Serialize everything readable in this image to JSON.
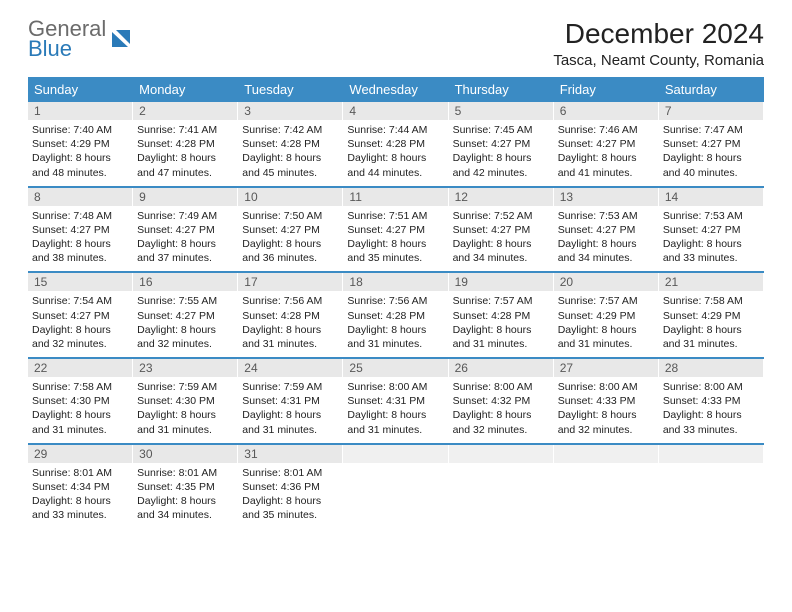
{
  "logo": {
    "general": "General",
    "blue": "Blue"
  },
  "title": "December 2024",
  "location": "Tasca, Neamt County, Romania",
  "colors": {
    "header_bg": "#3b8bc4",
    "header_text": "#ffffff",
    "daynum_bg": "#e8e8e8",
    "daynum_text": "#585858",
    "border": "#3b8bc4",
    "body_text": "#222222",
    "logo_gray": "#6b6b6b",
    "logo_blue": "#2a7ab8"
  },
  "fonts": {
    "title_size": 28,
    "location_size": 15,
    "dayheader_size": 13,
    "daynum_size": 12,
    "body_size": 10.5
  },
  "day_headers": [
    "Sunday",
    "Monday",
    "Tuesday",
    "Wednesday",
    "Thursday",
    "Friday",
    "Saturday"
  ],
  "weeks": [
    [
      {
        "n": "1",
        "sunrise": "7:40 AM",
        "sunset": "4:29 PM",
        "dh": "8",
        "dm": "48"
      },
      {
        "n": "2",
        "sunrise": "7:41 AM",
        "sunset": "4:28 PM",
        "dh": "8",
        "dm": "47"
      },
      {
        "n": "3",
        "sunrise": "7:42 AM",
        "sunset": "4:28 PM",
        "dh": "8",
        "dm": "45"
      },
      {
        "n": "4",
        "sunrise": "7:44 AM",
        "sunset": "4:28 PM",
        "dh": "8",
        "dm": "44"
      },
      {
        "n": "5",
        "sunrise": "7:45 AM",
        "sunset": "4:27 PM",
        "dh": "8",
        "dm": "42"
      },
      {
        "n": "6",
        "sunrise": "7:46 AM",
        "sunset": "4:27 PM",
        "dh": "8",
        "dm": "41"
      },
      {
        "n": "7",
        "sunrise": "7:47 AM",
        "sunset": "4:27 PM",
        "dh": "8",
        "dm": "40"
      }
    ],
    [
      {
        "n": "8",
        "sunrise": "7:48 AM",
        "sunset": "4:27 PM",
        "dh": "8",
        "dm": "38"
      },
      {
        "n": "9",
        "sunrise": "7:49 AM",
        "sunset": "4:27 PM",
        "dh": "8",
        "dm": "37"
      },
      {
        "n": "10",
        "sunrise": "7:50 AM",
        "sunset": "4:27 PM",
        "dh": "8",
        "dm": "36"
      },
      {
        "n": "11",
        "sunrise": "7:51 AM",
        "sunset": "4:27 PM",
        "dh": "8",
        "dm": "35"
      },
      {
        "n": "12",
        "sunrise": "7:52 AM",
        "sunset": "4:27 PM",
        "dh": "8",
        "dm": "34"
      },
      {
        "n": "13",
        "sunrise": "7:53 AM",
        "sunset": "4:27 PM",
        "dh": "8",
        "dm": "34"
      },
      {
        "n": "14",
        "sunrise": "7:53 AM",
        "sunset": "4:27 PM",
        "dh": "8",
        "dm": "33"
      }
    ],
    [
      {
        "n": "15",
        "sunrise": "7:54 AM",
        "sunset": "4:27 PM",
        "dh": "8",
        "dm": "32"
      },
      {
        "n": "16",
        "sunrise": "7:55 AM",
        "sunset": "4:27 PM",
        "dh": "8",
        "dm": "32"
      },
      {
        "n": "17",
        "sunrise": "7:56 AM",
        "sunset": "4:28 PM",
        "dh": "8",
        "dm": "31"
      },
      {
        "n": "18",
        "sunrise": "7:56 AM",
        "sunset": "4:28 PM",
        "dh": "8",
        "dm": "31"
      },
      {
        "n": "19",
        "sunrise": "7:57 AM",
        "sunset": "4:28 PM",
        "dh": "8",
        "dm": "31"
      },
      {
        "n": "20",
        "sunrise": "7:57 AM",
        "sunset": "4:29 PM",
        "dh": "8",
        "dm": "31"
      },
      {
        "n": "21",
        "sunrise": "7:58 AM",
        "sunset": "4:29 PM",
        "dh": "8",
        "dm": "31"
      }
    ],
    [
      {
        "n": "22",
        "sunrise": "7:58 AM",
        "sunset": "4:30 PM",
        "dh": "8",
        "dm": "31"
      },
      {
        "n": "23",
        "sunrise": "7:59 AM",
        "sunset": "4:30 PM",
        "dh": "8",
        "dm": "31"
      },
      {
        "n": "24",
        "sunrise": "7:59 AM",
        "sunset": "4:31 PM",
        "dh": "8",
        "dm": "31"
      },
      {
        "n": "25",
        "sunrise": "8:00 AM",
        "sunset": "4:31 PM",
        "dh": "8",
        "dm": "31"
      },
      {
        "n": "26",
        "sunrise": "8:00 AM",
        "sunset": "4:32 PM",
        "dh": "8",
        "dm": "32"
      },
      {
        "n": "27",
        "sunrise": "8:00 AM",
        "sunset": "4:33 PM",
        "dh": "8",
        "dm": "32"
      },
      {
        "n": "28",
        "sunrise": "8:00 AM",
        "sunset": "4:33 PM",
        "dh": "8",
        "dm": "33"
      }
    ],
    [
      {
        "n": "29",
        "sunrise": "8:01 AM",
        "sunset": "4:34 PM",
        "dh": "8",
        "dm": "33"
      },
      {
        "n": "30",
        "sunrise": "8:01 AM",
        "sunset": "4:35 PM",
        "dh": "8",
        "dm": "34"
      },
      {
        "n": "31",
        "sunrise": "8:01 AM",
        "sunset": "4:36 PM",
        "dh": "8",
        "dm": "35"
      },
      null,
      null,
      null,
      null
    ]
  ],
  "labels": {
    "sunrise": "Sunrise:",
    "sunset": "Sunset:",
    "daylight": "Daylight:",
    "hours_and": "hours and",
    "minutes": "minutes."
  }
}
